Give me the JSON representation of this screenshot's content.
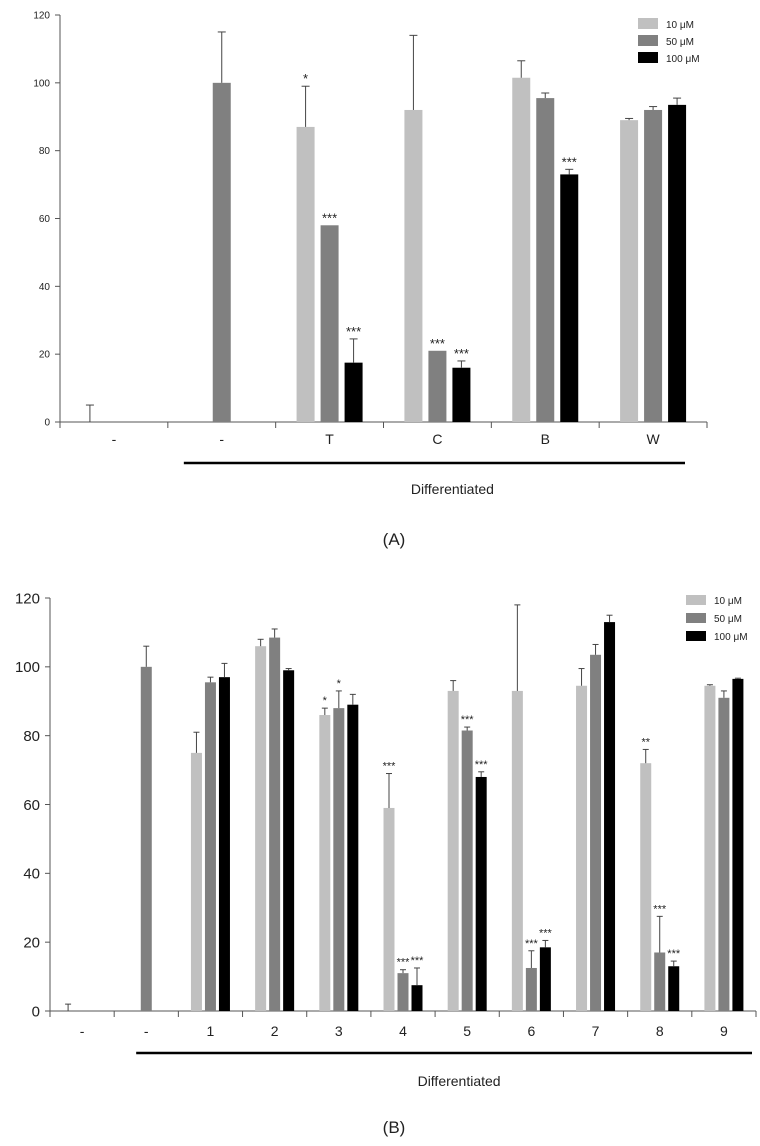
{
  "chart_data": [
    {
      "type": "bar",
      "panel_label": "(A)",
      "group_label": "Differentiated",
      "categories": [
        "-",
        "-",
        "T",
        "C",
        "B",
        "W"
      ],
      "ylim": [
        0,
        120
      ],
      "yticks": [
        0,
        20,
        40,
        60,
        80,
        100,
        120
      ],
      "legend_position": "top-right",
      "series": [
        {
          "name": "10 μM",
          "color": "#c0c0c0",
          "values": [
            0,
            null,
            87,
            92,
            101.5,
            89
          ],
          "errors": [
            5,
            null,
            12,
            22,
            5,
            0.5
          ],
          "sig": [
            "",
            "",
            "*",
            "",
            "",
            ""
          ]
        },
        {
          "name": "50 μM",
          "color": "#808080",
          "values": [
            null,
            100,
            58,
            21,
            95.5,
            92
          ],
          "errors": [
            null,
            15,
            0,
            0,
            1.5,
            1
          ],
          "sig": [
            "",
            "",
            "***",
            "***",
            "",
            ""
          ]
        },
        {
          "name": "100 μM",
          "color": "#000000",
          "values": [
            null,
            null,
            17.5,
            16,
            73,
            93.5
          ],
          "errors": [
            null,
            null,
            7,
            2,
            1.5,
            2
          ],
          "sig": [
            "",
            "",
            "***",
            "***",
            "***",
            ""
          ]
        }
      ]
    },
    {
      "type": "bar",
      "panel_label": "(B)",
      "group_label": "Differentiated",
      "categories": [
        "-",
        "-",
        "1",
        "2",
        "3",
        "4",
        "5",
        "6",
        "7",
        "8",
        "9"
      ],
      "ylim": [
        0,
        120
      ],
      "yticks": [
        0,
        20,
        40,
        60,
        80,
        100,
        120
      ],
      "legend_position": "top-right",
      "series": [
        {
          "name": "10 μM",
          "color": "#c0c0c0",
          "values": [
            0,
            null,
            75,
            106,
            86,
            59,
            93,
            93,
            94.5,
            72,
            94.5
          ],
          "errors": [
            2,
            null,
            6,
            2,
            2,
            10,
            3,
            25,
            5,
            4,
            0.3
          ],
          "sig": [
            "",
            "",
            "",
            "",
            "*",
            "***",
            "",
            "",
            "",
            "**",
            ""
          ]
        },
        {
          "name": "50 μM",
          "color": "#808080",
          "values": [
            null,
            100,
            95.5,
            108.5,
            88,
            11,
            81.5,
            12.5,
            103.5,
            17,
            91
          ],
          "errors": [
            null,
            6,
            1.5,
            2.5,
            5,
            1,
            1,
            5,
            3,
            10.5,
            2
          ],
          "sig": [
            "",
            "",
            "",
            "",
            "*",
            "***",
            "***",
            "***",
            "",
            "***",
            ""
          ]
        },
        {
          "name": "100 μM",
          "color": "#000000",
          "values": [
            null,
            null,
            97,
            99,
            89,
            7.5,
            68,
            18.5,
            113,
            13,
            96.5
          ],
          "errors": [
            null,
            null,
            4,
            0.5,
            3,
            5,
            1.5,
            2,
            2,
            1.5,
            0.2
          ],
          "sig": [
            "",
            "",
            "",
            "",
            "",
            "***",
            "***",
            "***",
            "",
            "***",
            ""
          ]
        }
      ]
    }
  ]
}
